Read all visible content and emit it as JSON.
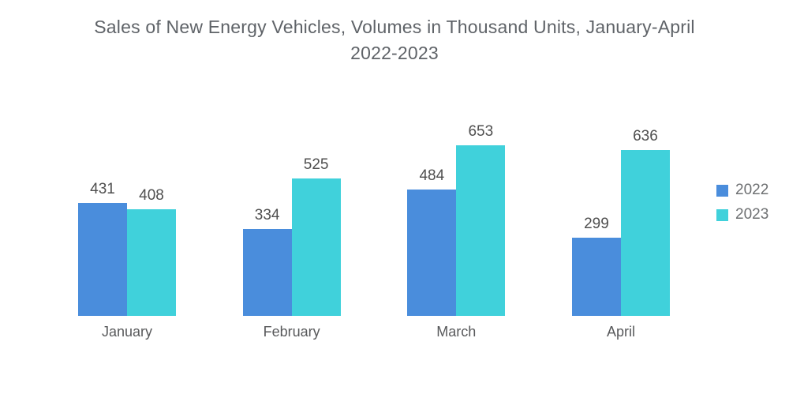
{
  "header": {
    "line1": "Sales of New Energy Vehicles, Volumes in Thousand Units, January-April",
    "line2": "2022-2023"
  },
  "chart_data": {
    "type": "bar",
    "title": "Sales of New Energy Vehicles, Volumes in Thousand Units, January-April 2022-2023",
    "categories": [
      "January",
      "February",
      "March",
      "April"
    ],
    "series": [
      {
        "name": "2022",
        "color": "#4A8DDC",
        "values": [
          431,
          334,
          484,
          299
        ]
      },
      {
        "name": "2023",
        "color": "#40D1DB",
        "values": [
          408,
          525,
          653,
          636
        ]
      }
    ],
    "xlabel": "",
    "ylabel": "",
    "ylim": [
      0,
      700
    ],
    "grid": false,
    "axes_visible": false,
    "value_labels": true,
    "legend_position": "right"
  },
  "colors": {
    "background": "#FFFFFF",
    "title_text": "#5F6368",
    "value_label_text": "#4F4F4F",
    "month_label_text": "#58595B",
    "legend_text": "#6E7072",
    "series_2022": "#4A8DDC",
    "series_2023": "#40D1DB"
  }
}
